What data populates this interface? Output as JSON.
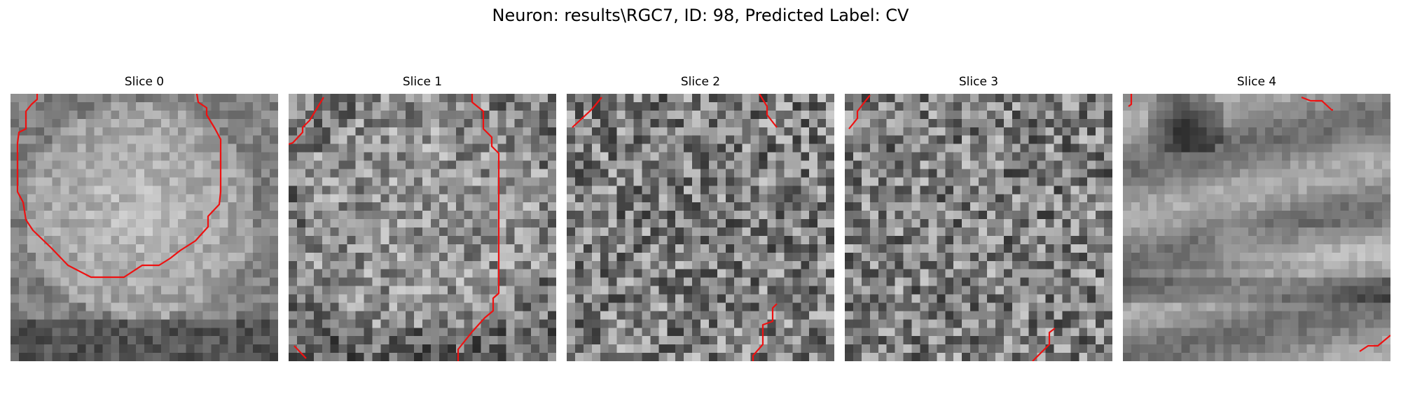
{
  "figure": {
    "suptitle": "Neuron: results\\RGC7, ID: 98, Predicted Label: CV",
    "contour_color": "#ee1111",
    "colormap": "gray",
    "panels": [
      {
        "title": "Slice 0",
        "texture": "soma"
      },
      {
        "title": "Slice 1",
        "texture": "soma-faint"
      },
      {
        "title": "Slice 2",
        "texture": "noise"
      },
      {
        "title": "Slice 3",
        "texture": "noise"
      },
      {
        "title": "Slice 4",
        "texture": "tissue"
      }
    ]
  }
}
